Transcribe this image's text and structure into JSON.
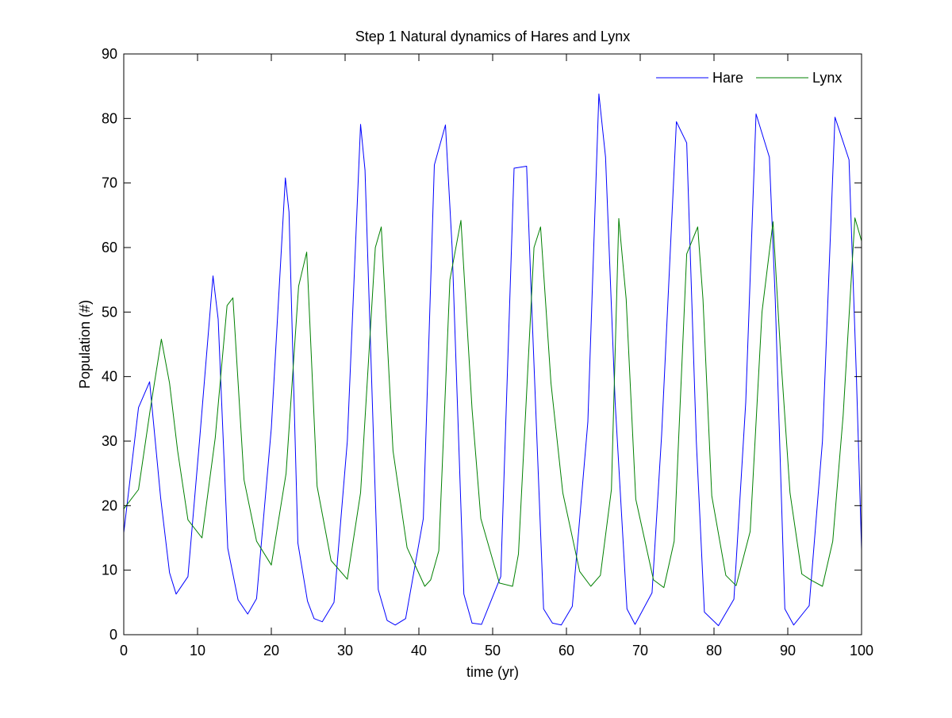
{
  "chart_data": {
    "type": "line",
    "title": "Step 1 Natural dynamics of Hares and Lynx",
    "xlabel": "time (yr)",
    "ylabel": "Population (#)",
    "xlim": [
      0,
      100
    ],
    "ylim": [
      0,
      90
    ],
    "xticks": [
      0,
      10,
      20,
      30,
      40,
      50,
      60,
      70,
      80,
      90,
      100
    ],
    "yticks": [
      0,
      10,
      20,
      30,
      40,
      50,
      60,
      70,
      80,
      90
    ],
    "grid": false,
    "legend_position": "top-right",
    "series": [
      {
        "name": "Hare",
        "color": "#0000ff",
        "x": [
          0,
          2,
          3.5,
          5,
          6.2,
          7.1,
          8.7,
          10.3,
          12.1,
          12.8,
          14.1,
          15.5,
          16.8,
          18,
          20,
          21.9,
          22.4,
          23.6,
          24.9,
          25.8,
          26.9,
          28.5,
          30.3,
          32.1,
          32.7,
          34.5,
          35.7,
          36.8,
          38.2,
          40.6,
          42.1,
          43.6,
          44.5,
          46.1,
          47.2,
          48.5,
          51.1,
          52.9,
          54.6,
          55.2,
          56.9,
          58.1,
          59.3,
          60.8,
          62.9,
          64.4,
          65.3,
          66.6,
          68.2,
          69.3,
          71.6,
          72.9,
          74.9,
          76.3,
          77.6,
          78.7,
          80.6,
          82.7,
          84.3,
          85.7,
          87.5,
          88.3,
          89.6,
          90.8,
          92.9,
          94.7,
          96.4,
          98.3,
          99.3,
          100
        ],
        "values": [
          15.8,
          35.2,
          39.2,
          21.2,
          9.6,
          6.3,
          9.0,
          30.5,
          55.6,
          48.9,
          13.4,
          5.4,
          3.2,
          5.6,
          32.0,
          70.8,
          65.5,
          14.2,
          5.2,
          2.5,
          2.0,
          5.0,
          30.0,
          79.1,
          72.0,
          7.0,
          2.2,
          1.5,
          2.5,
          18.0,
          72.8,
          79.0,
          60.0,
          6.3,
          1.8,
          1.6,
          9.0,
          72.3,
          72.6,
          53.5,
          4.0,
          1.8,
          1.5,
          4.4,
          33.0,
          83.8,
          74.0,
          36.0,
          4.0,
          1.6,
          6.5,
          31.0,
          79.5,
          76.2,
          30.0,
          3.5,
          1.4,
          5.5,
          36.0,
          80.7,
          74.0,
          52.0,
          4.0,
          1.5,
          4.5,
          30.0,
          80.2,
          73.6,
          40.0,
          13.2
        ]
      },
      {
        "name": "Lynx",
        "color": "#008000",
        "x": [
          0,
          2,
          3.6,
          5.1,
          6.2,
          7.3,
          8.7,
          10.6,
          12.4,
          14,
          14.8,
          16.3,
          18,
          20,
          22,
          23.7,
          24.8,
          26.2,
          28.1,
          30.3,
          32.1,
          34.1,
          34.9,
          36.5,
          38.4,
          40.8,
          41.6,
          42.7,
          44.2,
          45.7,
          47.2,
          48.4,
          50.9,
          52.7,
          53.5,
          55.6,
          56.5,
          57.9,
          59.5,
          61.8,
          63.3,
          64.6,
          66.1,
          67.1,
          68.1,
          69.4,
          71.8,
          73.2,
          74.6,
          76.3,
          77.8,
          78.5,
          79.7,
          81.6,
          83,
          84.9,
          86.5,
          88,
          89,
          90.3,
          91.9,
          93.1,
          94.7,
          96.1,
          97.5,
          99.1,
          100
        ],
        "values": [
          19.5,
          22.5,
          35.0,
          45.8,
          39.0,
          28.5,
          17.8,
          15.0,
          30.5,
          51.0,
          52.2,
          24.0,
          14.5,
          10.8,
          25.0,
          54.0,
          59.3,
          23.0,
          11.5,
          8.6,
          22.0,
          60.0,
          63.2,
          28.5,
          13.5,
          7.5,
          8.5,
          13.0,
          55.0,
          64.2,
          35.0,
          18.0,
          8.0,
          7.5,
          12.5,
          60.0,
          63.2,
          39.0,
          22.0,
          9.8,
          7.5,
          9.2,
          22.5,
          64.5,
          52.0,
          21.0,
          8.5,
          7.3,
          14.5,
          59.0,
          63.2,
          52.0,
          21.5,
          9.2,
          7.6,
          16.0,
          50.0,
          64.0,
          44.0,
          22.0,
          9.4,
          8.5,
          7.5,
          14.5,
          34.0,
          64.6,
          61.0
        ]
      }
    ]
  }
}
